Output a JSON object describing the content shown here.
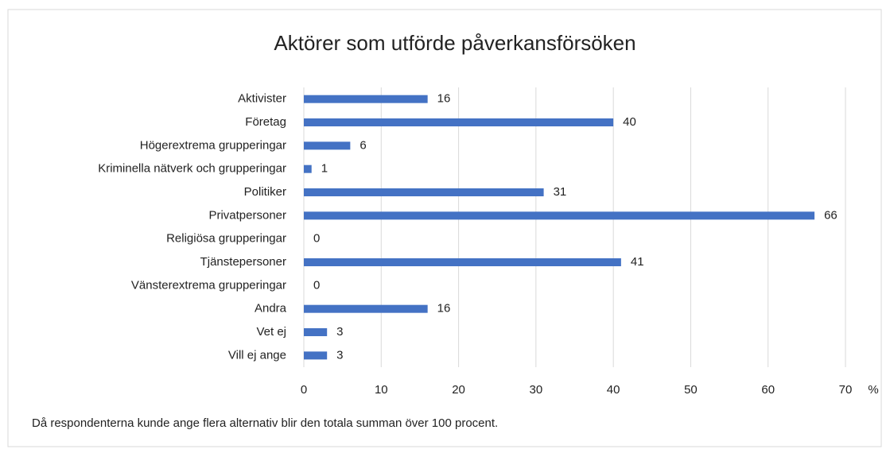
{
  "chart_data": {
    "type": "bar",
    "orientation": "horizontal",
    "title": "Aktörer som utförde påverkansförsöken",
    "categories": [
      "Aktivister",
      "Företag",
      "Högerextrema grupperingar",
      "Kriminella nätverk och grupperingar",
      "Politiker",
      "Privatpersoner",
      "Religiösa grupperingar",
      "Tjänstepersoner",
      "Vänsterextrema grupperingar",
      "Andra",
      "Vet ej",
      "Vill ej ange"
    ],
    "values": [
      16,
      40,
      6,
      1,
      31,
      66,
      0,
      41,
      0,
      16,
      3,
      3
    ],
    "color": "#4472c4",
    "xlim": [
      0,
      70
    ],
    "xticks": [
      0,
      10,
      20,
      30,
      40,
      50,
      60,
      70
    ],
    "x_label": "%",
    "grid": true,
    "note": "Då respondenterna kunde ange flera alternativ blir den totala summan över 100 procent."
  }
}
